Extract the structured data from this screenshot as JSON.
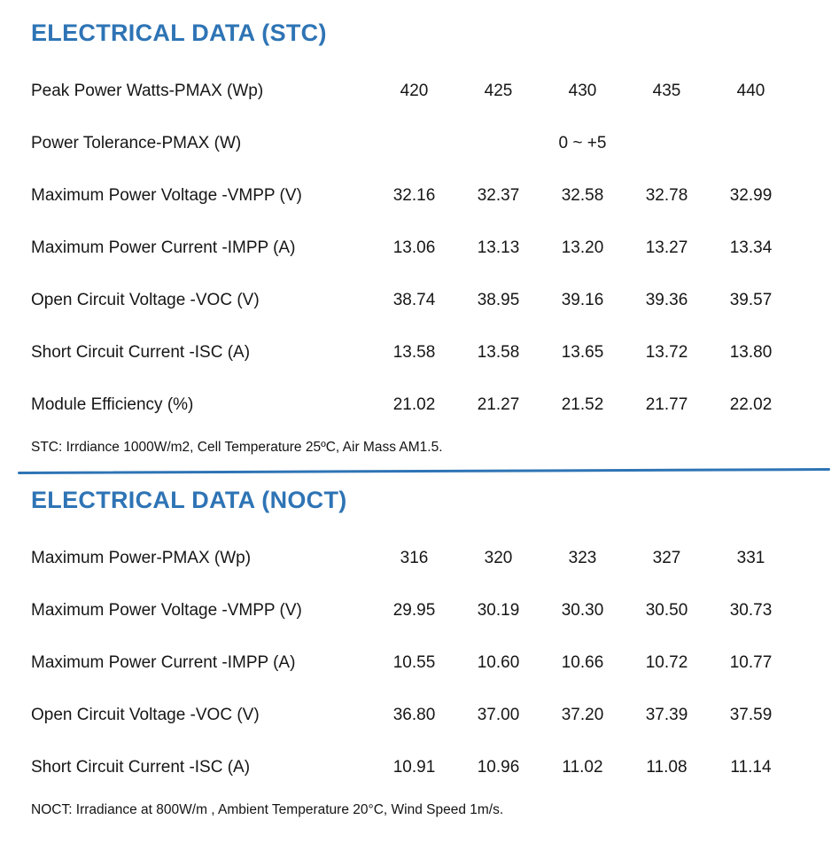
{
  "page": {
    "accent_color": "#2E74B5"
  },
  "stc": {
    "title": "ELECTRICAL DATA (STC)",
    "rows": [
      {
        "label": "Peak Power Watts-PMAX (Wp)",
        "values": [
          "420",
          "425",
          "430",
          "435",
          "440"
        ]
      },
      {
        "label": "Power Tolerance-PMAX (W)",
        "values": [
          "",
          "",
          "0 ~ +5",
          "",
          ""
        ]
      },
      {
        "label": "Maximum Power Voltage -VMPP (V)",
        "values": [
          "32.16",
          "32.37",
          "32.58",
          "32.78",
          "32.99"
        ]
      },
      {
        "label": "Maximum Power Current -IMPP (A)",
        "values": [
          "13.06",
          "13.13",
          "13.20",
          "13.27",
          "13.34"
        ]
      },
      {
        "label": "Open Circuit Voltage -VOC (V)",
        "values": [
          "38.74",
          "38.95",
          "39.16",
          "39.36",
          "39.57"
        ]
      },
      {
        "label": "Short Circuit Current -ISC (A)",
        "values": [
          "13.58",
          "13.58",
          "13.65",
          "13.72",
          "13.80"
        ]
      },
      {
        "label": "Module Efficiency (%)",
        "values": [
          "21.02",
          "21.27",
          "21.52",
          "21.77",
          "22.02"
        ]
      }
    ],
    "footnote": "STC: Irrdiance 1000W/m2, Cell Temperature 25ºC, Air Mass AM1.5."
  },
  "noct": {
    "title": "ELECTRICAL DATA (NOCT)",
    "rows": [
      {
        "label": "Maximum Power-PMAX (Wp)",
        "values": [
          "316",
          "320",
          "323",
          "327",
          "331"
        ]
      },
      {
        "label": "Maximum Power Voltage -VMPP (V)",
        "values": [
          "29.95",
          "30.19",
          "30.30",
          "30.50",
          "30.73"
        ]
      },
      {
        "label": "Maximum Power Current -IMPP (A)",
        "values": [
          "10.55",
          "10.60",
          "10.66",
          "10.72",
          "10.77"
        ]
      },
      {
        "label": "Open Circuit Voltage -VOC (V)",
        "values": [
          "36.80",
          "37.00",
          "37.20",
          "37.39",
          "37.59"
        ]
      },
      {
        "label": "Short Circuit Current -ISC (A)",
        "values": [
          "10.91",
          "10.96",
          "11.02",
          "11.08",
          "11.14"
        ]
      }
    ],
    "footnote": "NOCT: Irradiance at 800W/m , Ambient Temperature 20°C, Wind Speed 1m/s."
  }
}
